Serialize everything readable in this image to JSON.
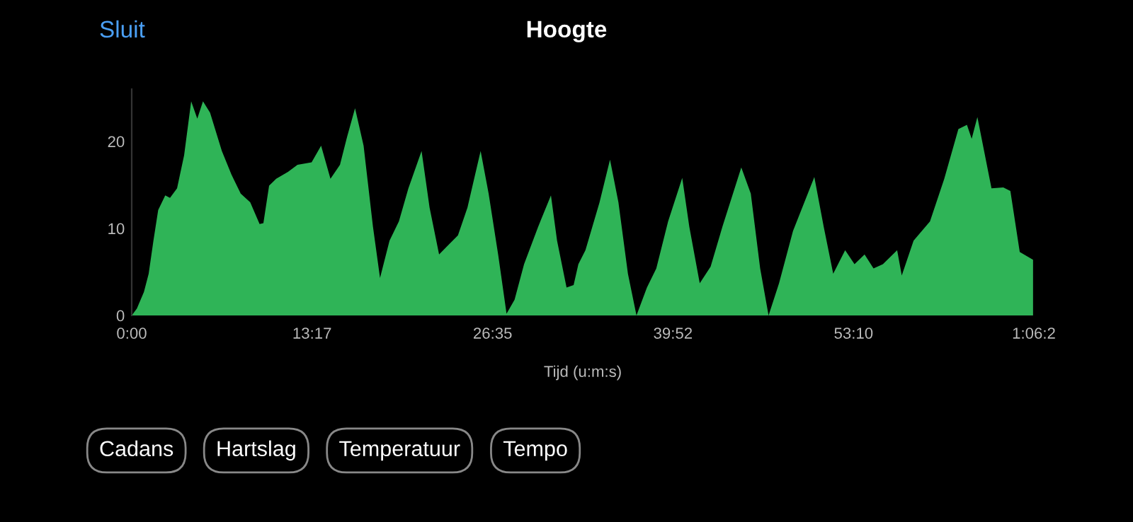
{
  "chart_data": {
    "type": "area",
    "title": "Hoogte",
    "xlabel": "Tijd (u:m:s)",
    "annotations": [
      "Sluit",
      "Cadans",
      "Hartslag",
      "Temperatuur",
      "Tempo"
    ],
    "xlim": [
      0,
      66.45
    ],
    "xticks": [
      {
        "value": 0,
        "label": "0:00"
      },
      {
        "value": 13.283,
        "label": "13:17"
      },
      {
        "value": 26.583,
        "label": "26:35"
      },
      {
        "value": 39.867,
        "label": "39:52"
      },
      {
        "value": 53.167,
        "label": "53:10"
      },
      {
        "value": 66.45,
        "label": "1:06:2"
      }
    ],
    "ylim": [
      0,
      26
    ],
    "yticks": [
      0,
      10,
      20
    ],
    "grid": false,
    "legend": false,
    "series": [
      {
        "color": "#2fb457",
        "x": [
          0,
          0.38,
          0.9,
          1.25,
          1.6,
          1.95,
          2.47,
          2.82,
          3.34,
          3.86,
          4.38,
          4.83,
          5.25,
          5.77,
          6.64,
          7.34,
          8.03,
          8.73,
          9.42,
          9.7,
          10.12,
          10.64,
          11.51,
          12.21,
          13.25,
          13.95,
          14.64,
          15.34,
          15.86,
          16.45,
          17.08,
          17.77,
          18.29,
          18.99,
          19.68,
          20.38,
          21.35,
          21.94,
          22.64,
          23.33,
          24.03,
          24.73,
          25.7,
          26.29,
          26.99,
          27.61,
          28.2,
          28.9,
          29.94,
          30.88,
          31.33,
          32.03,
          32.55,
          32.9,
          33.42,
          34.46,
          35.23,
          35.85,
          36.55,
          37.18,
          37.95,
          38.64,
          39.51,
          40.55,
          41.07,
          41.84,
          42.64,
          43.51,
          44.9,
          45.6,
          46.29,
          46.91,
          47.68,
          48.71,
          50.28,
          50.97,
          51.67,
          52.55,
          53.24,
          53.98,
          54.64,
          55.33,
          56.38,
          56.72,
          57.59,
          58.8,
          59.85,
          60.89,
          61.52,
          61.87,
          62.29,
          63.33,
          64.2,
          64.72,
          65.41,
          66.39
        ],
        "values": [
          0,
          0.8,
          2.7,
          4.8,
          8.6,
          12.1,
          13.8,
          13.5,
          14.6,
          18.4,
          24.6,
          22.6,
          24.6,
          23.3,
          18.9,
          16.2,
          14.0,
          13.0,
          10.5,
          10.6,
          14.9,
          15.7,
          16.5,
          17.3,
          17.6,
          19.5,
          15.7,
          17.3,
          20.5,
          23.8,
          19.5,
          10.2,
          4.3,
          8.6,
          10.8,
          14.6,
          18.9,
          12.4,
          7.0,
          8.1,
          9.2,
          12.4,
          18.9,
          14.0,
          7.0,
          0.2,
          1.8,
          5.9,
          10.2,
          13.8,
          8.6,
          3.2,
          3.5,
          5.9,
          7.5,
          13.0,
          17.9,
          13.0,
          4.8,
          0,
          3.2,
          5.4,
          10.8,
          15.8,
          10.2,
          3.7,
          5.6,
          10.2,
          17.0,
          14.0,
          5.4,
          0,
          3.7,
          9.7,
          15.9,
          10.2,
          4.8,
          7.5,
          5.9,
          7.0,
          5.4,
          5.9,
          7.5,
          4.6,
          8.6,
          10.8,
          15.7,
          21.4,
          21.9,
          20.3,
          22.8,
          14.6,
          14.7,
          14.3,
          7.3,
          6.4
        ]
      }
    ]
  }
}
